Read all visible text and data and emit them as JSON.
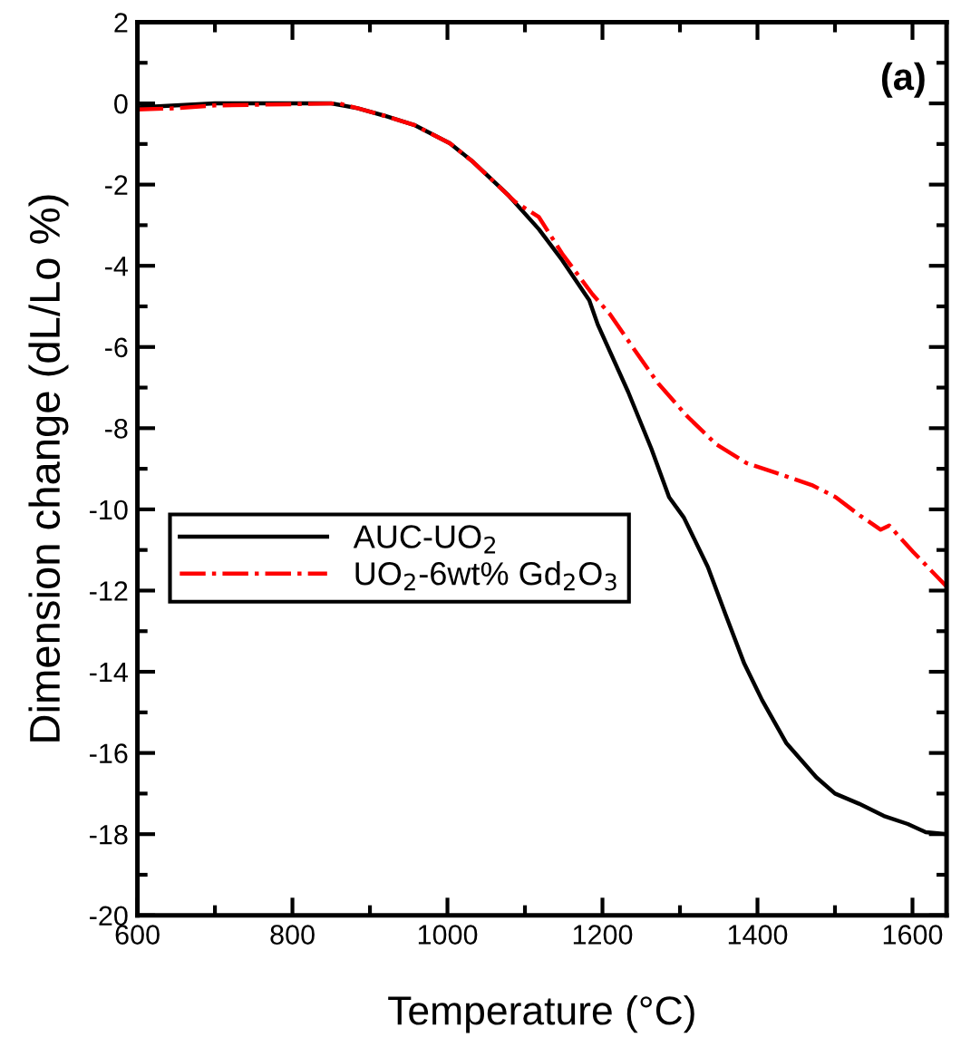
{
  "chart_data": {
    "type": "line",
    "xlabel": "Temperature (°C)",
    "ylabel": "Dimension change (dL/Lo %)",
    "annotations": [
      "(a)"
    ],
    "xlim": [
      600,
      1644
    ],
    "ylim": [
      -20,
      2
    ],
    "xticks": [
      600,
      800,
      1000,
      1200,
      1400,
      1600
    ],
    "yticks": [
      -20,
      -18,
      -16,
      -14,
      -12,
      -10,
      -8,
      -6,
      -4,
      -2,
      0,
      2
    ],
    "grid": false,
    "legend": "left",
    "marker": "none",
    "series": [
      {
        "name": "AUC-UO$_{2}$",
        "color": "#000000",
        "line_style": "solid",
        "x": [
          600,
          650,
          700,
          850,
          884,
          918,
          957,
          1003,
          1033,
          1079,
          1118,
          1148,
          1183,
          1194,
          1233,
          1263,
          1286,
          1305,
          1336,
          1359,
          1383,
          1406,
          1437,
          1476,
          1500,
          1531,
          1563,
          1594,
          1617,
          1644
        ],
        "values": [
          -0.1,
          -0.05,
          0,
          0,
          -0.12,
          -0.3,
          -0.53,
          -0.98,
          -1.44,
          -2.27,
          -3.1,
          -3.86,
          -4.85,
          -5.45,
          -7.1,
          -8.5,
          -9.7,
          -10.2,
          -11.42,
          -12.6,
          -13.8,
          -14.7,
          -15.75,
          -16.6,
          -17,
          -17.25,
          -17.55,
          -17.75,
          -17.95,
          -18
        ]
      },
      {
        "name": "UO$_{2}$-6wt% Gd$_{2}$O$_{3}$",
        "color": "#ff0000",
        "line_style": "dashdot",
        "x": [
          600,
          650,
          700,
          860,
          884,
          918,
          957,
          1003,
          1033,
          1087,
          1118,
          1148,
          1187,
          1210,
          1241,
          1272,
          1309,
          1347,
          1386,
          1424,
          1470,
          1501,
          1532,
          1559,
          1570,
          1601,
          1644
        ],
        "values": [
          -0.15,
          -0.12,
          -0.05,
          0,
          -0.12,
          -0.3,
          -0.53,
          -0.98,
          -1.44,
          -2.42,
          -2.8,
          -3.7,
          -4.7,
          -5.2,
          -6.06,
          -6.9,
          -7.7,
          -8.4,
          -8.86,
          -9.1,
          -9.4,
          -9.7,
          -10.15,
          -10.5,
          -10.4,
          -11.05,
          -11.9
        ]
      }
    ]
  }
}
